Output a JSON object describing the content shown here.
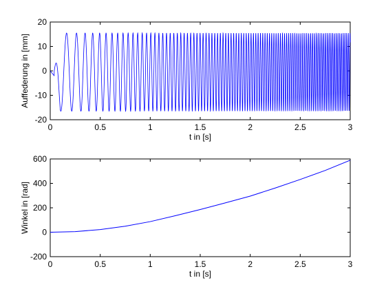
{
  "chart_data": [
    {
      "type": "line",
      "xlabel": "t in [s]",
      "ylabel": "Auffederung in [mm]",
      "xlim": [
        0,
        3
      ],
      "ylim": [
        -20,
        20
      ],
      "xticks": [
        0,
        0.5,
        1,
        1.5,
        2,
        2.5,
        3
      ],
      "yticks": [
        -20,
        -10,
        0,
        10,
        20
      ],
      "xtick_labels": [
        "0",
        "0.5",
        "1",
        "1.5",
        "2",
        "2.5",
        "3"
      ],
      "ytick_labels": [
        "-20",
        "-10",
        "0",
        "10",
        "20"
      ],
      "grid": false,
      "series": [
        {
          "color": "#0000ff",
          "description_points": {
            "x": [
              0,
              0.03,
              0.06,
              0.1,
              0.15
            ],
            "y": [
              0,
              -2,
              -8,
              -16.5,
              15.5
            ]
          },
          "amplitude_after_startup": 15.5,
          "min_after_startup": -16.5,
          "frequency_hz_start": 7,
          "frequency_hz_end": 60
        }
      ],
      "color": "#0000ff"
    },
    {
      "type": "line",
      "xlabel": "t in [s]",
      "ylabel": "Winkel in [rad]",
      "xlim": [
        0,
        3
      ],
      "ylim": [
        -200,
        600
      ],
      "xticks": [
        0,
        0.5,
        1,
        1.5,
        2,
        2.5,
        3
      ],
      "yticks": [
        -200,
        0,
        200,
        400,
        600
      ],
      "xtick_labels": [
        "0",
        "0.5",
        "1",
        "1.5",
        "2",
        "2.5",
        "3"
      ],
      "ytick_labels": [
        "-200",
        "0",
        "200",
        "400",
        "600"
      ],
      "grid": false,
      "series": [
        {
          "color": "#0000ff",
          "x": [
            0,
            0.25,
            0.5,
            0.75,
            1,
            1.25,
            1.5,
            1.75,
            2,
            2.25,
            2.5,
            2.75,
            3
          ],
          "y": [
            0,
            5,
            22,
            49,
            87,
            135,
            186,
            240,
            296,
            362,
            432,
            506,
            590
          ]
        }
      ]
    }
  ]
}
